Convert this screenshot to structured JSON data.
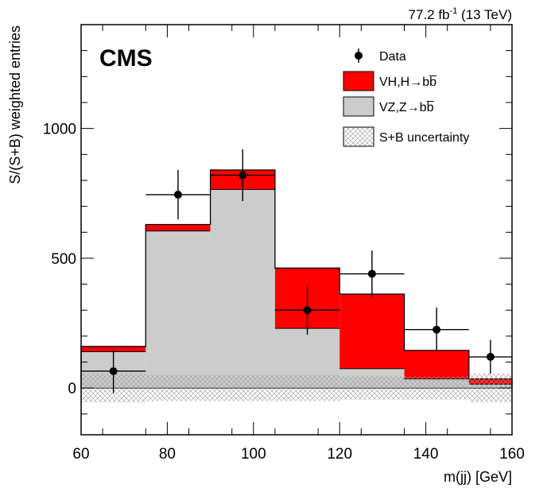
{
  "chart_data": {
    "type": "bar",
    "experiment": "CMS",
    "lumi": {
      "value": "77.2 fb",
      "exponent": "-1",
      "energy": "(13 TeV)"
    },
    "xlabel": "m(jj) [GeV]",
    "ylabel": "S/(S+B) weighted entries",
    "xlim": [
      60,
      160
    ],
    "ylim": [
      -180,
      1400
    ],
    "x_ticks": [
      60,
      80,
      100,
      120,
      140,
      160
    ],
    "y_ticks": [
      0,
      500,
      1000
    ],
    "bin_edges": [
      60,
      75,
      90,
      105,
      120,
      135,
      150,
      160
    ],
    "series": [
      {
        "name": "VZ,Z→bb̅",
        "role": "background",
        "color": "#cccccc",
        "values": [
          140,
          605,
          765,
          230,
          75,
          35,
          15
        ]
      },
      {
        "name": "VH,H→bb̅",
        "role": "signal",
        "color": "#ff0000",
        "values": [
          20,
          25,
          75,
          232,
          287,
          110,
          20
        ]
      }
    ],
    "uncertainty": {
      "name": "S+B uncertainty",
      "pattern": "hatched",
      "half_width": [
        55,
        50,
        50,
        50,
        45,
        45,
        55
      ]
    },
    "data_points": {
      "name": "Data",
      "x": [
        67.5,
        82.5,
        97.5,
        112.5,
        127.5,
        142.5,
        155
      ],
      "y": [
        65,
        745,
        820,
        300,
        440,
        225,
        120
      ],
      "x_err": [
        7.5,
        7.5,
        7.5,
        7.5,
        7.5,
        7.5,
        5
      ],
      "y_err": [
        85,
        95,
        100,
        95,
        90,
        85,
        65
      ]
    },
    "legend": {
      "position": "top-right",
      "entries": [
        {
          "label": "Data",
          "style": "marker"
        },
        {
          "label": "VH,H→bb̅",
          "style": "fill-red"
        },
        {
          "label": "VZ,Z→bb̅",
          "style": "fill-gray"
        },
        {
          "label": "S+B uncertainty",
          "style": "hatch"
        }
      ]
    }
  }
}
